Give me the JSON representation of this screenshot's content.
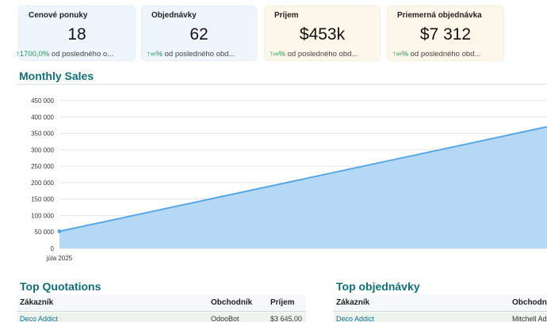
{
  "kpis": [
    {
      "title": "Cenové ponuky",
      "value": "18",
      "trend_arrow": "↑",
      "trend_pct": "1700,0%",
      "trend_text": "od posledného o...",
      "bg": "#eef5fd"
    },
    {
      "title": "Objednávky",
      "value": "62",
      "trend_arrow": "↑",
      "trend_pct": "∞%",
      "trend_text": "od posledného obd...",
      "bg": "#eef5fd"
    },
    {
      "title": "Príjem",
      "value": "$453k",
      "trend_arrow": "↑",
      "trend_pct": "∞%",
      "trend_text": "od posledného obd...",
      "bg": "#fdf7e9"
    },
    {
      "title": "Priemerná objednávka",
      "value": "$7 312",
      "trend_arrow": "↑",
      "trend_pct": "∞%",
      "trend_text": "od posledného obd...",
      "bg": "#fdf7e9"
    }
  ],
  "sales": {
    "title": "Monthly Sales"
  },
  "chart_data": {
    "type": "area",
    "title": "Monthly Sales",
    "xlabel": "",
    "ylabel": "",
    "x": [
      "júla 2025"
    ],
    "y_ticks": [
      "450 000",
      "400 000",
      "350 000",
      "300 000",
      "250 000",
      "200 000",
      "150 000",
      "100 000",
      "50 000",
      "0"
    ],
    "ylim": [
      0,
      450000
    ],
    "series": [
      {
        "points": [
          {
            "x": "júla 2025",
            "y": 52000
          },
          {
            "x": "end",
            "y": 370000
          }
        ]
      }
    ],
    "fill": "#b5d8f6",
    "line": "#5aa7e4",
    "grid": true
  },
  "quotations": {
    "title": "Top Quotations",
    "columns": [
      "Zákazník",
      "Obchodník",
      "Príjem"
    ],
    "rows": [
      {
        "customer": "Deco Addict",
        "salesperson": "OdooBot",
        "revenue": "$3 645,00"
      }
    ]
  },
  "orders": {
    "title": "Top objednávky",
    "columns": [
      "Zákazník",
      "Obchodn"
    ],
    "rows": [
      {
        "customer": "Deco Addict",
        "salesperson": "Mitchell Adm"
      }
    ]
  }
}
